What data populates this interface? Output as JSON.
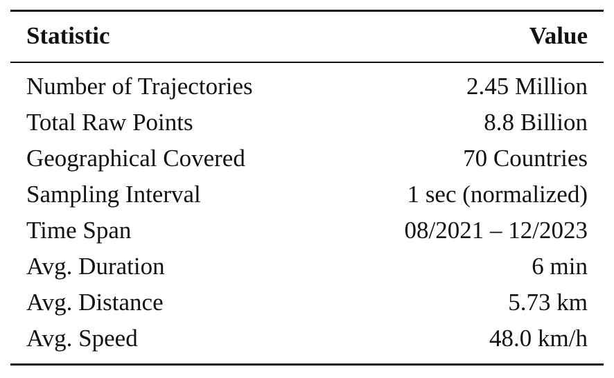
{
  "table": {
    "header": [
      "Statistic",
      "Value"
    ],
    "rows": [
      [
        "Number of Trajectories",
        "2.45 Million"
      ],
      [
        "Total Raw Points",
        "8.8 Billion"
      ],
      [
        "Geographical Covered",
        "70 Countries"
      ],
      [
        "Sampling Interval",
        "1 sec (normalized)"
      ],
      [
        "Time Span",
        "08/2021 – 12/2023"
      ],
      [
        "Avg. Duration",
        "6 min"
      ],
      [
        "Avg. Distance",
        "5.73 km"
      ],
      [
        "Avg. Speed",
        "48.0 km/h"
      ]
    ]
  }
}
